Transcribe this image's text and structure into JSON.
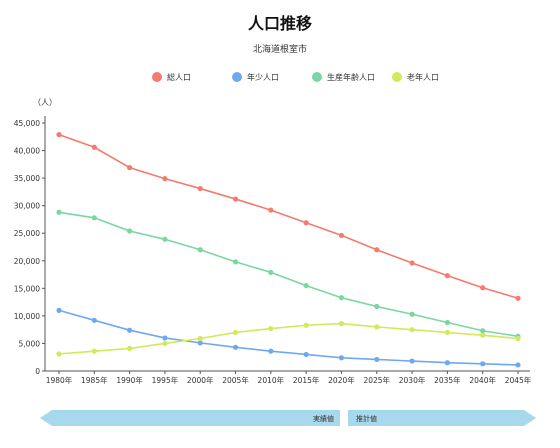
{
  "chart_data": {
    "type": "line",
    "title": "人口推移",
    "subtitle": "北海道根室市",
    "ylabel": "（人）",
    "ylim": [
      0,
      45000
    ],
    "yticks": [
      0,
      5000,
      10000,
      15000,
      20000,
      25000,
      30000,
      35000,
      40000,
      45000
    ],
    "ytick_labels": [
      "0",
      "5,000",
      "10,000",
      "15,000",
      "20,000",
      "25,000",
      "30,000",
      "35,000",
      "40,000",
      "45,000"
    ],
    "categories": [
      "1980年",
      "1985年",
      "1990年",
      "1995年",
      "2000年",
      "2005年",
      "2010年",
      "2015年",
      "2020年",
      "2025年",
      "2030年",
      "2035年",
      "2040年",
      "2045年"
    ],
    "series": [
      {
        "name": "総人口",
        "color": "#f47b6d",
        "values": [
          42900,
          40600,
          36900,
          34900,
          33100,
          31200,
          29200,
          26900,
          24600,
          22000,
          19600,
          17300,
          15100,
          13200
        ]
      },
      {
        "name": "年少人口",
        "color": "#6fa8f2",
        "values": [
          11000,
          9200,
          7400,
          6000,
          5100,
          4300,
          3600,
          3000,
          2400,
          2100,
          1800,
          1500,
          1300,
          1100
        ]
      },
      {
        "name": "生産年齢人口",
        "color": "#7ad6a3",
        "values": [
          28800,
          27800,
          25400,
          23900,
          22000,
          19800,
          17900,
          15500,
          13300,
          11700,
          10300,
          8800,
          7300,
          6300
        ]
      },
      {
        "name": "老年人口",
        "color": "#d3e85a",
        "values": [
          3100,
          3600,
          4100,
          5000,
          5900,
          7000,
          7700,
          8300,
          8600,
          8000,
          7500,
          7000,
          6500,
          5900
        ]
      }
    ],
    "legend_position": "top",
    "grid": false
  },
  "periods": {
    "actual_label": "実績値",
    "estimate_label": "推計値",
    "actual_color": "#a7d8ec",
    "estimate_color": "#a7d8ec"
  }
}
